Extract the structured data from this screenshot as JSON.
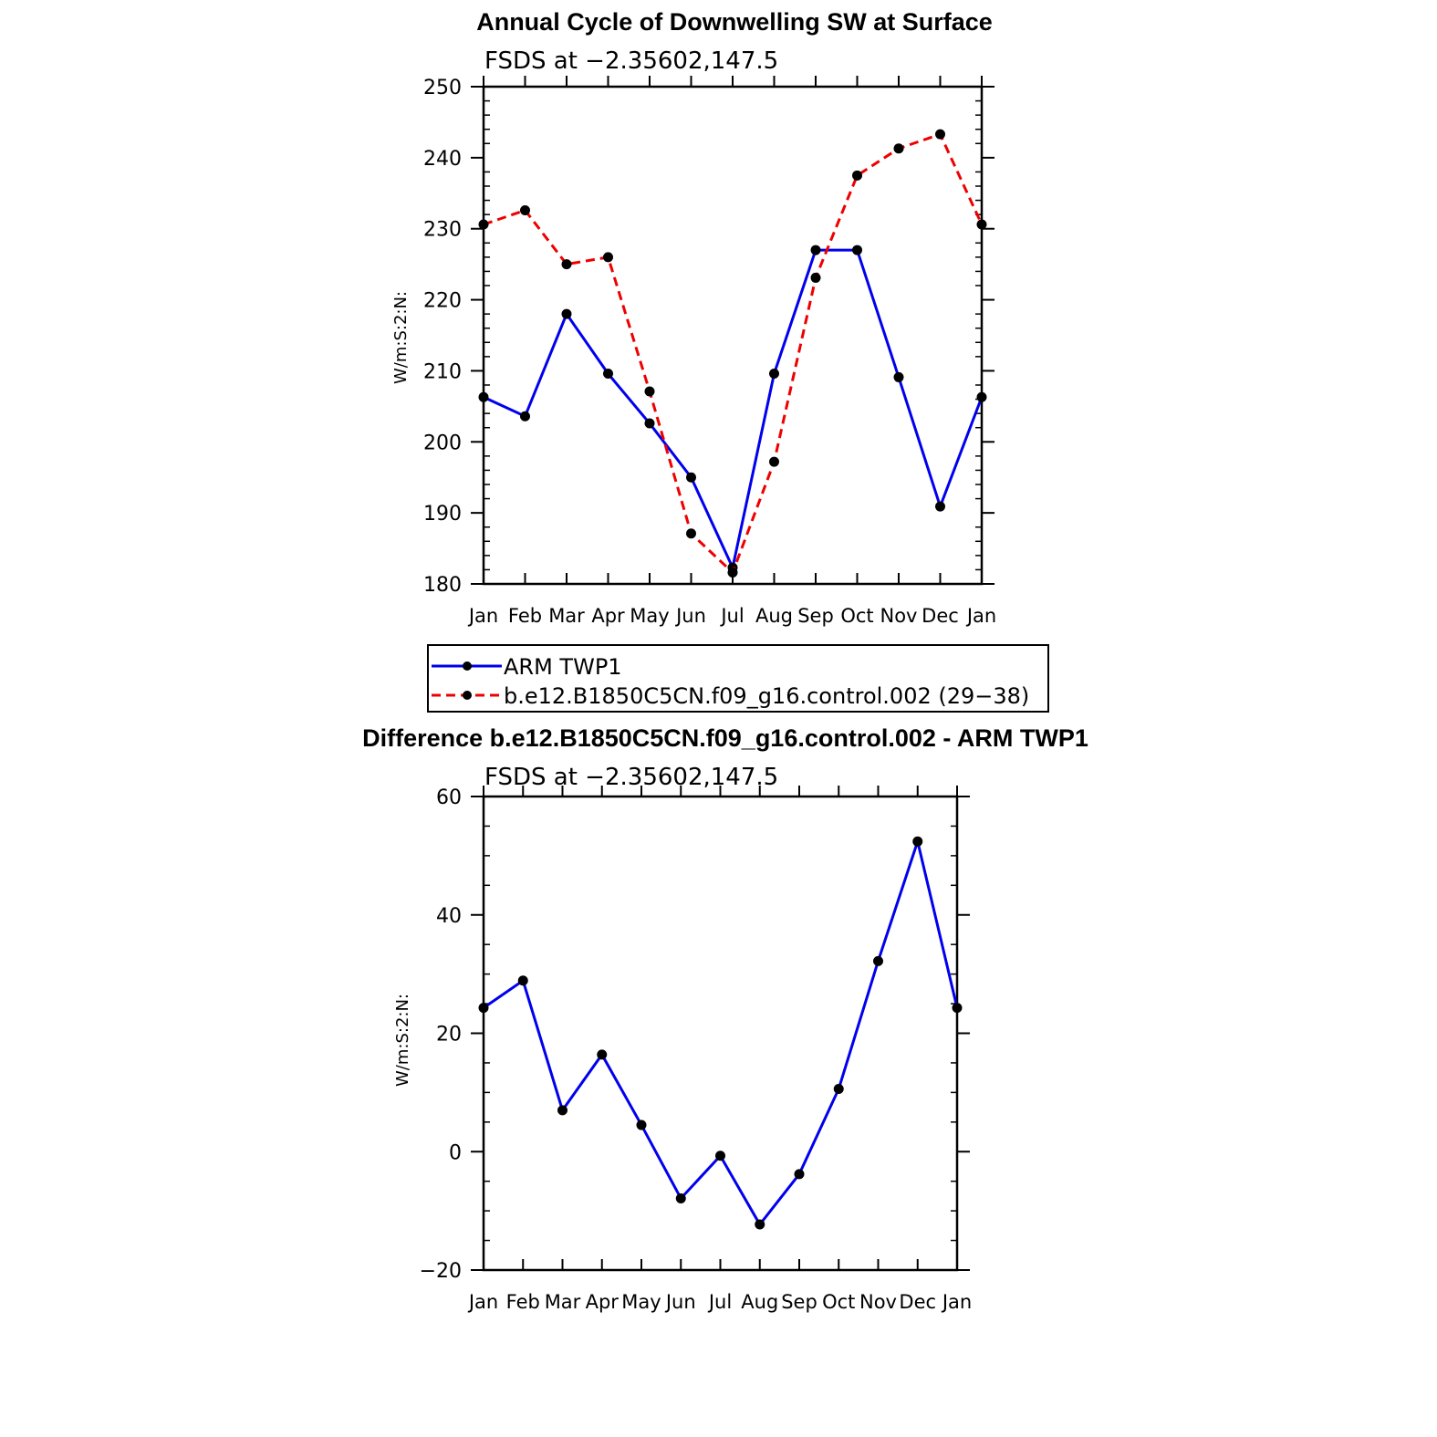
{
  "chart_data": [
    {
      "type": "line",
      "title": "Annual Cycle of Downwelling SW at Surface",
      "subtitle": "FSDS at −2.35602,147.5",
      "ylabel": "W/m:S:2:N:",
      "xlabel": "",
      "categories": [
        "Jan",
        "Feb",
        "Mar",
        "Apr",
        "May",
        "Jun",
        "Jul",
        "Aug",
        "Sep",
        "Oct",
        "Nov",
        "Dec",
        "Jan"
      ],
      "ylim": [
        180,
        250
      ],
      "yticks": [
        "180",
        "190",
        "200",
        "210",
        "220",
        "230",
        "240",
        "250"
      ],
      "series": [
        {
          "name": "ARM TWP1",
          "color": "#0000ee",
          "dash": "solid",
          "values": [
            206.3,
            203.6,
            218.0,
            209.6,
            202.6,
            195.0,
            182.3,
            209.6,
            227.0,
            227.0,
            209.1,
            190.9,
            206.3
          ]
        },
        {
          "name": "b.e12.B1850C5CN.f09_g16.control.002 (29−38)",
          "color": "#ee0000",
          "dash": "dashed",
          "values": [
            230.6,
            232.6,
            225.0,
            226.0,
            207.1,
            187.1,
            181.6,
            197.2,
            223.1,
            237.5,
            241.3,
            243.3,
            230.6
          ]
        }
      ],
      "legend": "below"
    },
    {
      "type": "line",
      "title": "Difference b.e12.B1850C5CN.f09_g16.control.002 - ARM TWP1",
      "subtitle": "FSDS at −2.35602,147.5",
      "ylabel": "W/m:S:2:N:",
      "xlabel": "",
      "categories": [
        "Jan",
        "Feb",
        "Mar",
        "Apr",
        "May",
        "Jun",
        "Jul",
        "Aug",
        "Sep",
        "Oct",
        "Nov",
        "Dec",
        "Jan"
      ],
      "ylim": [
        -20,
        60
      ],
      "yticks": [
        "−20",
        "0",
        "20",
        "40",
        "60"
      ],
      "series": [
        {
          "name": "Difference",
          "color": "#0000ee",
          "dash": "solid",
          "values": [
            24.3,
            28.9,
            7.0,
            16.4,
            4.5,
            -7.9,
            -0.7,
            -12.3,
            -3.8,
            10.6,
            32.2,
            52.4,
            24.3
          ]
        }
      ]
    }
  ]
}
